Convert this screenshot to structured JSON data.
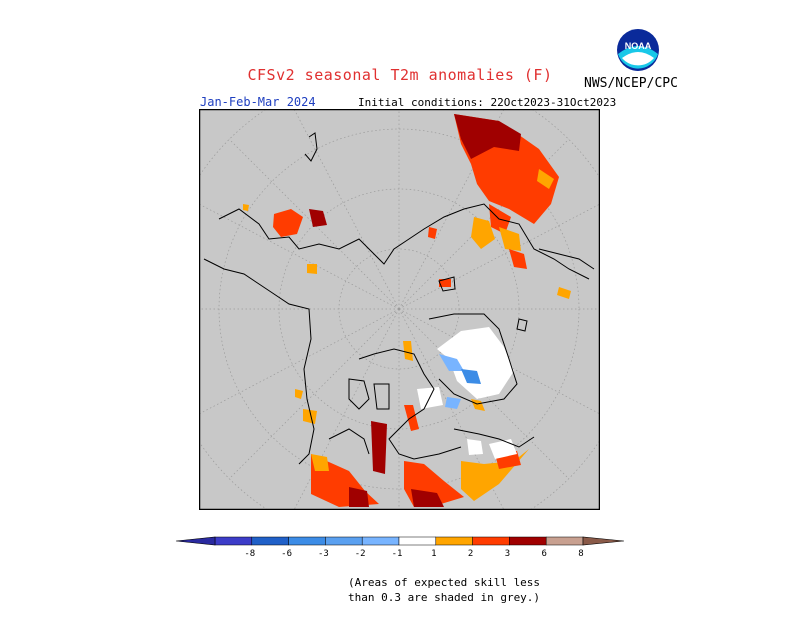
{
  "header": {
    "title": "CFSv2 seasonal T2m anomalies (F)",
    "agency": "NWS/NCEP/CPC",
    "logo_text": "NOAA",
    "season": "Jan-Feb-Mar 2024",
    "initial_conditions": "Initial conditions: 22Oct2023-31Oct2023"
  },
  "colors": {
    "grey_low_skill": "#c8c8c8",
    "land_outline": "#000000",
    "grid": "#a0a0a0",
    "neutral": "#ffffff",
    "pos_1_2": "#ffa500",
    "pos_2_3": "#ff3c00",
    "pos_3_6": "#a00000",
    "pos_6_8": "#c8a090",
    "neg_1_2": "#78b4ff",
    "neg_2_3": "#3c8ce6",
    "neg_3_6": "#2060c8",
    "neg_6_8": "#3c3cc8"
  },
  "colorbar": {
    "ticks": [
      "-8",
      "-6",
      "-3",
      "-2",
      "-1",
      "1",
      "2",
      "3",
      "6",
      "8"
    ],
    "bins": [
      {
        "color": "#3c3cc8"
      },
      {
        "color": "#2060c8"
      },
      {
        "color": "#3c8ce6"
      },
      {
        "color": "#5aa0f0"
      },
      {
        "color": "#78b4ff"
      },
      {
        "color": "#ffffff"
      },
      {
        "color": "#ffa500"
      },
      {
        "color": "#ff3c00"
      },
      {
        "color": "#a00000"
      },
      {
        "color": "#c8a090"
      }
    ],
    "low_end_color": "#2a2aa0",
    "high_end_color": "#8a5a48"
  },
  "footnote": {
    "line1": "(Areas of expected skill less",
    "line2": "than 0.3 are shaded in grey.)"
  }
}
